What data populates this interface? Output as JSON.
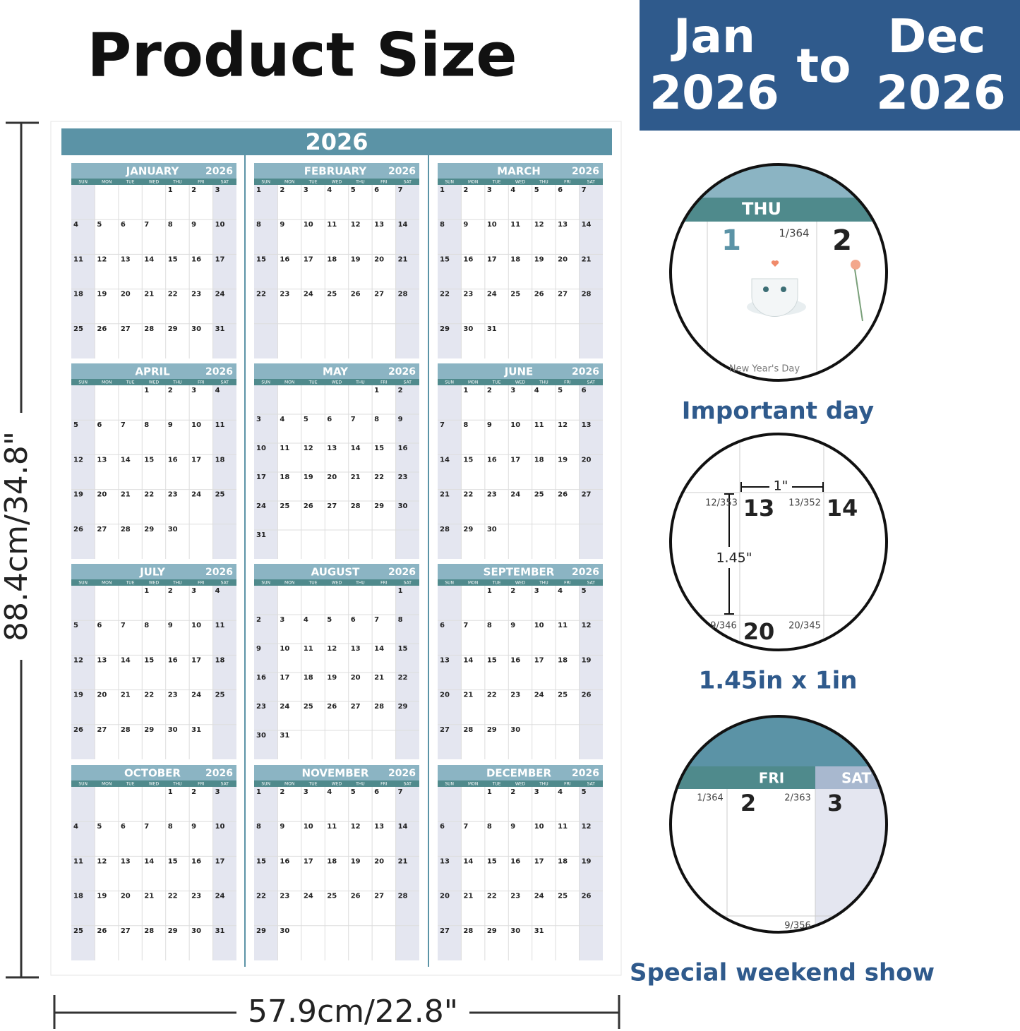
{
  "header": {
    "title": "Product Size"
  },
  "banner": {
    "from": [
      "Jan",
      "2026"
    ],
    "to": "to",
    "until": [
      "Dec",
      "2026"
    ]
  },
  "dimensions": {
    "height": "88.4cm/34.8\"",
    "width": "57.9cm/22.8\""
  },
  "calendar": {
    "year": "2026",
    "weekdays": [
      "SUN",
      "MON",
      "TUE",
      "WED",
      "THU",
      "FRI",
      "SAT"
    ],
    "months": [
      {
        "name": "JANUARY",
        "weeks": [
          [
            null,
            null,
            null,
            null,
            1,
            2,
            3
          ],
          [
            4,
            5,
            6,
            7,
            8,
            9,
            10
          ],
          [
            11,
            12,
            13,
            14,
            15,
            16,
            17
          ],
          [
            18,
            19,
            20,
            21,
            22,
            23,
            24
          ],
          [
            25,
            26,
            27,
            28,
            29,
            30,
            31
          ]
        ]
      },
      {
        "name": "FEBRUARY",
        "weeks": [
          [
            1,
            2,
            3,
            4,
            5,
            6,
            7
          ],
          [
            8,
            9,
            10,
            11,
            12,
            13,
            14
          ],
          [
            15,
            16,
            17,
            18,
            19,
            20,
            21
          ],
          [
            22,
            23,
            24,
            25,
            26,
            27,
            28
          ]
        ]
      },
      {
        "name": "MARCH",
        "weeks": [
          [
            1,
            2,
            3,
            4,
            5,
            6,
            7
          ],
          [
            8,
            9,
            10,
            11,
            12,
            13,
            14
          ],
          [
            15,
            16,
            17,
            18,
            19,
            20,
            21
          ],
          [
            22,
            23,
            24,
            25,
            26,
            27,
            28
          ],
          [
            29,
            30,
            31,
            null,
            null,
            null,
            null
          ]
        ]
      },
      {
        "name": "APRIL",
        "weeks": [
          [
            null,
            null,
            null,
            1,
            2,
            3,
            4
          ],
          [
            5,
            6,
            7,
            8,
            9,
            10,
            11
          ],
          [
            12,
            13,
            14,
            15,
            16,
            17,
            18
          ],
          [
            19,
            20,
            21,
            22,
            23,
            24,
            25
          ],
          [
            26,
            27,
            28,
            29,
            30,
            null,
            null
          ]
        ]
      },
      {
        "name": "MAY",
        "weeks": [
          [
            null,
            null,
            null,
            null,
            null,
            1,
            2
          ],
          [
            3,
            4,
            5,
            6,
            7,
            8,
            9
          ],
          [
            10,
            11,
            12,
            13,
            14,
            15,
            16
          ],
          [
            17,
            18,
            19,
            20,
            21,
            22,
            23
          ],
          [
            24,
            25,
            26,
            27,
            28,
            29,
            30
          ],
          [
            31,
            null,
            null,
            null,
            null,
            null,
            null
          ]
        ]
      },
      {
        "name": "JUNE",
        "weeks": [
          [
            null,
            1,
            2,
            3,
            4,
            5,
            6
          ],
          [
            7,
            8,
            9,
            10,
            11,
            12,
            13
          ],
          [
            14,
            15,
            16,
            17,
            18,
            19,
            20
          ],
          [
            21,
            22,
            23,
            24,
            25,
            26,
            27
          ],
          [
            28,
            29,
            30,
            null,
            null,
            null,
            null
          ]
        ]
      },
      {
        "name": "JULY",
        "weeks": [
          [
            null,
            null,
            null,
            1,
            2,
            3,
            4
          ],
          [
            5,
            6,
            7,
            8,
            9,
            10,
            11
          ],
          [
            12,
            13,
            14,
            15,
            16,
            17,
            18
          ],
          [
            19,
            20,
            21,
            22,
            23,
            24,
            25
          ],
          [
            26,
            27,
            28,
            29,
            30,
            31,
            null
          ]
        ]
      },
      {
        "name": "AUGUST",
        "weeks": [
          [
            null,
            null,
            null,
            null,
            null,
            null,
            1
          ],
          [
            2,
            3,
            4,
            5,
            6,
            7,
            8
          ],
          [
            9,
            10,
            11,
            12,
            13,
            14,
            15
          ],
          [
            16,
            17,
            18,
            19,
            20,
            21,
            22
          ],
          [
            23,
            24,
            25,
            26,
            27,
            28,
            29
          ],
          [
            30,
            31,
            null,
            null,
            null,
            null,
            null
          ]
        ]
      },
      {
        "name": "SEPTEMBER",
        "weeks": [
          [
            null,
            null,
            1,
            2,
            3,
            4,
            5
          ],
          [
            6,
            7,
            8,
            9,
            10,
            11,
            12
          ],
          [
            13,
            14,
            15,
            16,
            17,
            18,
            19
          ],
          [
            20,
            21,
            22,
            23,
            24,
            25,
            26
          ],
          [
            27,
            28,
            29,
            30,
            null,
            null,
            null
          ]
        ]
      },
      {
        "name": "OCTOBER",
        "weeks": [
          [
            null,
            null,
            null,
            null,
            1,
            2,
            3
          ],
          [
            4,
            5,
            6,
            7,
            8,
            9,
            10
          ],
          [
            11,
            12,
            13,
            14,
            15,
            16,
            17
          ],
          [
            18,
            19,
            20,
            21,
            22,
            23,
            24
          ],
          [
            25,
            26,
            27,
            28,
            29,
            30,
            31
          ]
        ]
      },
      {
        "name": "NOVEMBER",
        "weeks": [
          [
            1,
            2,
            3,
            4,
            5,
            6,
            7
          ],
          [
            8,
            9,
            10,
            11,
            12,
            13,
            14
          ],
          [
            15,
            16,
            17,
            18,
            19,
            20,
            21
          ],
          [
            22,
            23,
            24,
            25,
            26,
            27,
            28
          ],
          [
            29,
            30,
            null,
            null,
            null,
            null,
            null
          ]
        ]
      },
      {
        "name": "DECEMBER",
        "weeks": [
          [
            null,
            null,
            1,
            2,
            3,
            4,
            5
          ],
          [
            6,
            7,
            8,
            9,
            10,
            11,
            12
          ],
          [
            13,
            14,
            15,
            16,
            17,
            18,
            19
          ],
          [
            20,
            21,
            22,
            23,
            24,
            25,
            26
          ],
          [
            27,
            28,
            29,
            30,
            31,
            null,
            null
          ]
        ]
      }
    ]
  },
  "details": [
    {
      "caption": "Important day",
      "weekday": "THU",
      "day": "1",
      "count": "1/364",
      "next_day": "2",
      "holiday": "New Year's Day"
    },
    {
      "caption": "1.45in x 1in",
      "counts": [
        "12/353",
        "13/352",
        "9/346",
        "20/345"
      ],
      "days": [
        "13",
        "14",
        "20"
      ],
      "width": "1\"",
      "height": "1.45\""
    },
    {
      "caption": "Special weekend show",
      "weekdays": [
        "FRI",
        "SAT"
      ],
      "counts": [
        "1/364",
        "2/363",
        "9/356"
      ],
      "days": [
        "2",
        "3"
      ]
    }
  ]
}
